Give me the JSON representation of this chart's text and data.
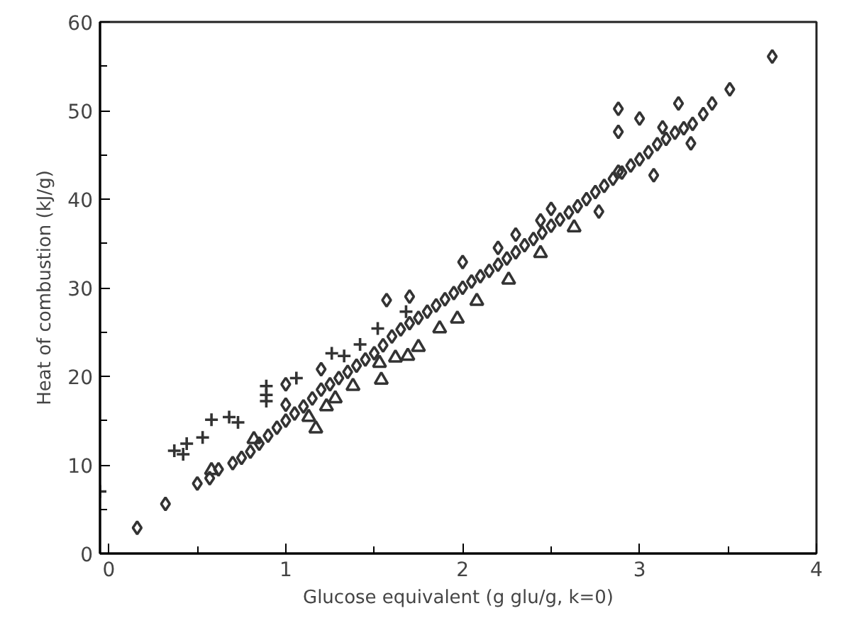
{
  "chart_data": {
    "type": "scatter",
    "xlabel": "Glucose equivalent (g glu/g, k=0)",
    "ylabel": "Heat of combustion (kJ/g)",
    "xlim": [
      -0.05,
      4
    ],
    "ylim": [
      0,
      60
    ],
    "xticks": [
      0,
      1,
      2,
      3,
      4
    ],
    "yticks": [
      0,
      10,
      20,
      30,
      40,
      50,
      60
    ],
    "grid": false,
    "series": [
      {
        "color": "#333333",
        "marker": "diamond",
        "x": [
          0.16,
          0.32,
          0.5,
          0.57,
          0.62,
          0.7,
          0.75,
          0.8,
          0.85,
          0.9,
          0.95,
          1.0,
          1.05,
          1.1,
          1.15,
          1.2,
          1.25,
          1.3,
          1.35,
          1.4,
          1.45,
          1.5,
          1.55,
          1.6,
          1.65,
          1.7,
          1.75,
          1.8,
          1.85,
          1.9,
          1.95,
          2.0,
          2.05,
          2.1,
          2.15,
          2.2,
          2.25,
          2.3,
          2.35,
          2.4,
          2.45,
          2.5,
          2.55,
          2.6,
          2.65,
          2.7,
          2.75,
          2.8,
          2.85,
          2.9,
          2.95,
          3.0,
          3.05,
          3.1,
          3.15,
          3.2,
          3.25,
          3.3,
          3.36,
          3.41,
          3.51,
          3.75,
          2.88,
          2.88,
          3.0,
          3.13,
          3.22,
          3.29,
          3.08,
          2.77,
          2.88,
          2.44,
          2.5,
          2.0,
          1.7,
          1.57,
          1.0,
          1.0,
          1.2,
          2.2,
          2.3
        ],
        "values": [
          2.9,
          5.6,
          7.9,
          8.5,
          9.5,
          10.2,
          10.8,
          11.5,
          12.4,
          13.3,
          14.2,
          15.0,
          15.8,
          16.6,
          17.5,
          18.5,
          19.1,
          19.8,
          20.5,
          21.2,
          21.9,
          22.6,
          23.5,
          24.5,
          25.3,
          26.0,
          26.6,
          27.3,
          28.0,
          28.7,
          29.4,
          30.0,
          30.7,
          31.3,
          31.9,
          32.6,
          33.3,
          34.0,
          34.8,
          35.5,
          36.2,
          37.0,
          37.7,
          38.5,
          39.2,
          40.0,
          40.8,
          41.5,
          42.3,
          43.0,
          43.8,
          44.5,
          45.3,
          46.2,
          46.8,
          47.5,
          48.0,
          48.5,
          49.6,
          50.8,
          52.4,
          56.1,
          50.2,
          47.6,
          49.1,
          48.1,
          50.8,
          46.3,
          42.7,
          38.6,
          43.1,
          37.6,
          38.9,
          32.9,
          29.0,
          28.6,
          19.1,
          16.8,
          20.8,
          34.5,
          36.0
        ]
      },
      {
        "color": "#333333",
        "marker": "cross",
        "x": [
          -0.05,
          0.37,
          0.42,
          0.44,
          0.53,
          0.58,
          0.68,
          0.73,
          0.89,
          0.89,
          0.89,
          1.06,
          1.26,
          1.33,
          1.42,
          1.52,
          1.68
        ],
        "values": [
          7.0,
          11.6,
          11.2,
          12.4,
          13.1,
          15.1,
          15.4,
          14.8,
          18.9,
          17.9,
          17.2,
          19.8,
          22.6,
          22.3,
          23.6,
          25.4,
          27.3
        ]
      },
      {
        "color": "#333333",
        "marker": "triangle",
        "x": [
          0.58,
          0.82,
          1.13,
          1.17,
          1.23,
          1.28,
          1.38,
          1.53,
          1.54,
          1.62,
          1.69,
          1.75,
          1.87,
          1.97,
          2.08,
          2.26,
          2.44,
          2.63
        ],
        "values": [
          9.4,
          12.9,
          15.4,
          14.1,
          16.6,
          17.5,
          18.9,
          21.5,
          19.6,
          22.1,
          22.3,
          23.3,
          25.4,
          26.5,
          28.5,
          30.9,
          33.9,
          36.8
        ]
      }
    ]
  }
}
